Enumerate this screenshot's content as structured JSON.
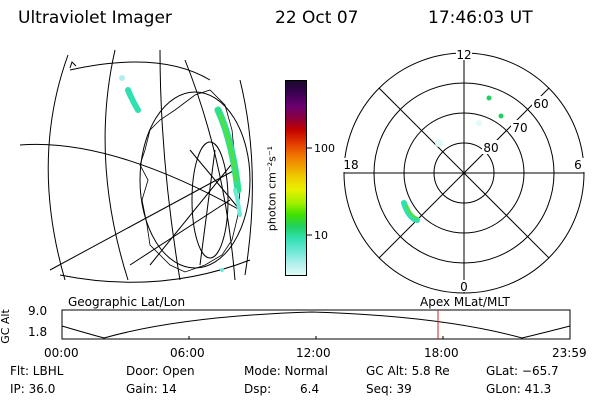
{
  "header": {
    "title": "Ultraviolet Imager",
    "date": "22 Oct 07",
    "time": "17:46:03 UT"
  },
  "colorbar": {
    "unit_label": "photon cm⁻²s⁻¹",
    "tick_100": "100",
    "tick_10": "10",
    "colors": [
      "#1a0a2e",
      "#3a0050",
      "#6a0070",
      "#8a0040",
      "#c00000",
      "#e03000",
      "#f07000",
      "#f0a000",
      "#f0d000",
      "#e8f000",
      "#a0f000",
      "#40e000",
      "#20d060",
      "#30e0b0",
      "#70e8d8",
      "#b0f0ec",
      "#e0faf8"
    ]
  },
  "polar_plot": {
    "labels": {
      "top": "12",
      "bottom": "0",
      "left": "18",
      "right": "6"
    },
    "ring_labels": [
      "60",
      "70",
      "80"
    ]
  },
  "timeline": {
    "y_axis_label": "GC Alt",
    "y_ticks": [
      "9.0",
      "1.8"
    ],
    "left_label": "Geographic Lat/Lon",
    "right_label": "Apex MLat/MLT",
    "x_ticks": [
      "00:00",
      "06:00",
      "12:00",
      "18:00",
      "23:59"
    ],
    "marker_color": "#d02020"
  },
  "info": {
    "flt": "Flt: LBHL",
    "ip": "IP: 36.0",
    "door": "Door: Open",
    "gain": "Gain: 14",
    "mode": "Mode: Normal",
    "dsp_label": "Dsp:",
    "dsp_value": "6.4",
    "gc_alt": "GC Alt: 5.8 Re",
    "seq": "Seq: 39",
    "glat": "GLat: −65.7",
    "glon": "GLon:  41.3"
  }
}
